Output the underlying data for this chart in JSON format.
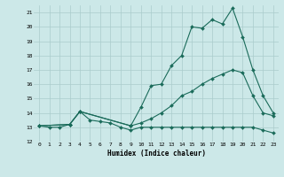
{
  "xlabel": "Humidex (Indice chaleur)",
  "bg_color": "#cce8e8",
  "grid_color": "#aacccc",
  "line_color": "#1a6b5a",
  "xlim": [
    -0.5,
    23.5
  ],
  "ylim": [
    12,
    21.5
  ],
  "yticks": [
    12,
    13,
    14,
    15,
    16,
    17,
    18,
    19,
    20,
    21
  ],
  "xticks": [
    0,
    1,
    2,
    3,
    4,
    5,
    6,
    7,
    8,
    9,
    10,
    11,
    12,
    13,
    14,
    15,
    16,
    17,
    18,
    19,
    20,
    21,
    22,
    23
  ],
  "line1_x": [
    0,
    1,
    2,
    3,
    4,
    5,
    6,
    7,
    8,
    9,
    10,
    11,
    12,
    13,
    14,
    15,
    16,
    17,
    18,
    19,
    20,
    21,
    22,
    23
  ],
  "line1_y": [
    13.1,
    13.0,
    13.0,
    13.2,
    14.1,
    13.5,
    13.4,
    13.3,
    13.0,
    12.8,
    13.0,
    13.0,
    13.0,
    13.0,
    13.0,
    13.0,
    13.0,
    13.0,
    13.0,
    13.0,
    13.0,
    13.0,
    12.8,
    12.6
  ],
  "line2_x": [
    0,
    3,
    4,
    9,
    10,
    11,
    12,
    13,
    14,
    15,
    16,
    17,
    18,
    19,
    20,
    21,
    22,
    23
  ],
  "line2_y": [
    13.1,
    13.2,
    14.1,
    13.1,
    14.4,
    15.9,
    16.0,
    17.3,
    18.0,
    20.0,
    19.9,
    20.5,
    20.2,
    21.3,
    19.3,
    17.0,
    15.2,
    14.0
  ],
  "line3_x": [
    0,
    3,
    4,
    9,
    10,
    11,
    12,
    13,
    14,
    15,
    16,
    17,
    18,
    19,
    20,
    21,
    22,
    23
  ],
  "line3_y": [
    13.1,
    13.2,
    14.1,
    13.1,
    13.3,
    13.6,
    14.0,
    14.5,
    15.2,
    15.5,
    16.0,
    16.4,
    16.7,
    17.0,
    16.8,
    15.2,
    14.0,
    13.8
  ]
}
